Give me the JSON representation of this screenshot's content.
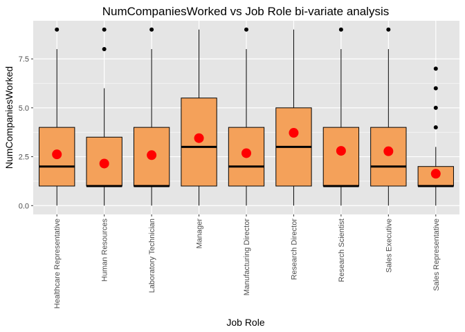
{
  "chart_data": {
    "type": "boxplot",
    "title": "NumCompaniesWorked vs Job Role bi-variate analysis",
    "xlabel": "Job Role",
    "ylabel": "NumCompaniesWorked",
    "ylim": [
      -0.45,
      9.45
    ],
    "yticks": [
      0.0,
      2.5,
      5.0,
      7.5
    ],
    "ytick_labels": [
      "0.0",
      "2.5",
      "5.0",
      "7.5"
    ],
    "grid": true,
    "colors": {
      "panel": "#e5e5e5",
      "grid": "#ffffff",
      "box_fill": "#f4a15a",
      "box_stroke": "#000000",
      "mean": "#ff0000",
      "outlier": "#000000"
    },
    "categories": [
      "Healthcare Representative",
      "Human Resources",
      "Laboratory Technician",
      "Manager",
      "Manufacturing Director",
      "Research Director",
      "Research Scientist",
      "Sales Executive",
      "Sales Representative"
    ],
    "boxes": [
      {
        "min": 0,
        "q1": 1,
        "median": 2,
        "q3": 4,
        "max": 8,
        "mean": 2.62,
        "outliers": [
          9
        ]
      },
      {
        "min": 0,
        "q1": 1,
        "median": 1,
        "q3": 3.5,
        "max": 6,
        "mean": 2.15,
        "outliers": [
          8,
          9
        ]
      },
      {
        "min": 0,
        "q1": 1,
        "median": 1,
        "q3": 4,
        "max": 8,
        "mean": 2.58,
        "outliers": [
          9
        ]
      },
      {
        "min": 0,
        "q1": 1,
        "median": 3,
        "q3": 5.5,
        "max": 9,
        "mean": 3.45,
        "outliers": []
      },
      {
        "min": 0,
        "q1": 1,
        "median": 2,
        "q3": 4,
        "max": 8,
        "mean": 2.68,
        "outliers": [
          9
        ]
      },
      {
        "min": 0,
        "q1": 1,
        "median": 3,
        "q3": 5,
        "max": 9,
        "mean": 3.72,
        "outliers": []
      },
      {
        "min": 0,
        "q1": 1,
        "median": 1,
        "q3": 4,
        "max": 8,
        "mean": 2.8,
        "outliers": [
          9
        ]
      },
      {
        "min": 0,
        "q1": 1,
        "median": 2,
        "q3": 4,
        "max": 8,
        "mean": 2.78,
        "outliers": [
          9
        ]
      },
      {
        "min": 0,
        "q1": 1,
        "median": 1,
        "q3": 2,
        "max": 3,
        "mean": 1.63,
        "outliers": [
          4,
          5,
          6,
          7
        ]
      }
    ]
  }
}
